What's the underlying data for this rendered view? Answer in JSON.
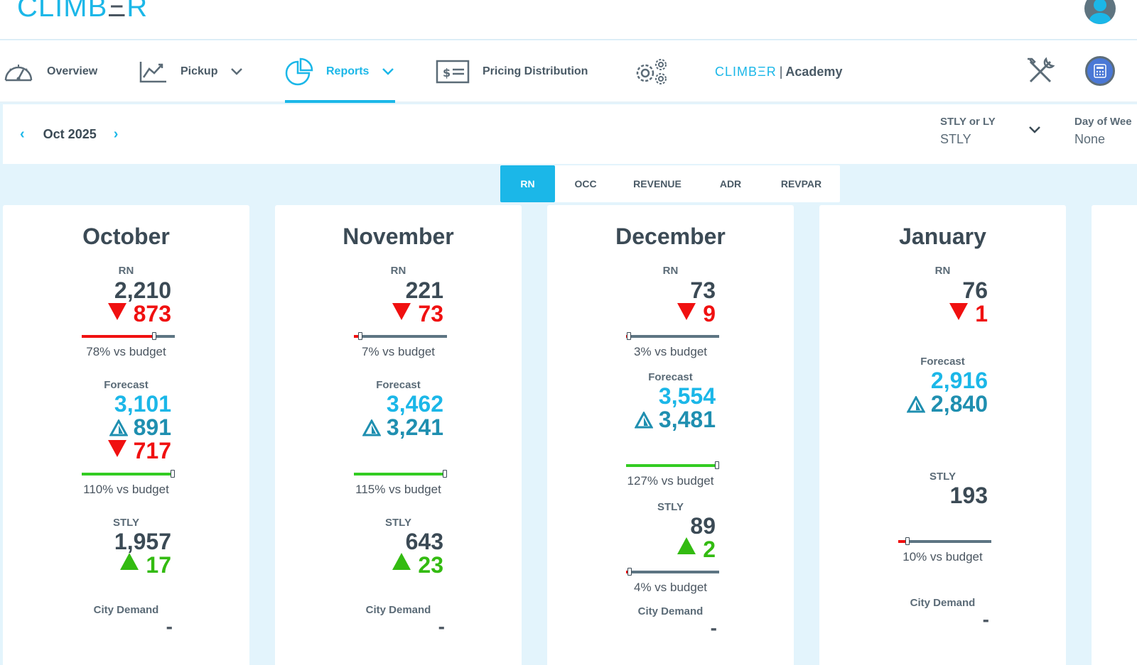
{
  "app": {
    "logo_prefix": "CLIMB",
    "logo_e": "Ξ",
    "logo_suffix": "R"
  },
  "nav": {
    "overview": "Overview",
    "pickup": "Pickup",
    "reports": "Reports",
    "pricing": "Pricing Distribution",
    "academy_brand": "CLIMBΞR",
    "academy_sep": "|",
    "academy_label": "Academy"
  },
  "filters": {
    "period": "Oct 2025",
    "comparison_label": "STLY or LY",
    "comparison_value": "STLY",
    "dow_label": "Day of Wee",
    "dow_value": "None"
  },
  "tabs": [
    "RN",
    "OCC",
    "REVENUE",
    "ADR",
    "REVPAR"
  ],
  "colors": {
    "accent": "#1bb7e8",
    "negative": "#f01010",
    "positive": "#33bb11",
    "forecast_delta": "#1f8fb0"
  },
  "cards": [
    {
      "month": "October",
      "rn_label": "RN",
      "rn": "2,210",
      "rn_delta": "873",
      "rn_delta_dir": "down",
      "rn_budget_fraction": 0.78,
      "rn_budget_text": "78% vs budget",
      "forecast_label": "Forecast",
      "forecast": "3,101",
      "forecast_pickup": "891",
      "forecast_delta": "717",
      "forecast_delta_dir": "down",
      "forecast_budget_fraction": 1.1,
      "forecast_budget_text": "110% vs budget",
      "stly_label": "STLY",
      "stly": "1,957",
      "stly_delta": "17",
      "stly_delta_dir": "up",
      "city_label": "City Demand",
      "city": "-"
    },
    {
      "month": "November",
      "rn_label": "RN",
      "rn": "221",
      "rn_delta": "73",
      "rn_delta_dir": "down",
      "rn_budget_fraction": 0.07,
      "rn_budget_text": "7% vs budget",
      "forecast_label": "Forecast",
      "forecast": "3,462",
      "forecast_pickup": "3,241",
      "forecast_budget_fraction": 1.15,
      "forecast_budget_text": "115% vs budget",
      "stly_label": "STLY",
      "stly": "643",
      "stly_delta": "23",
      "stly_delta_dir": "up",
      "city_label": "City Demand",
      "city": "-"
    },
    {
      "month": "December",
      "rn_label": "RN",
      "rn": "73",
      "rn_delta": "9",
      "rn_delta_dir": "down",
      "rn_budget_fraction": 0.03,
      "rn_budget_text": "3% vs budget",
      "forecast_label": "Forecast",
      "forecast": "3,554",
      "forecast_pickup": "3,481",
      "forecast_budget_fraction": 1.27,
      "forecast_budget_text": "127% vs budget",
      "stly_label": "STLY",
      "stly": "89",
      "stly_delta": "2",
      "stly_delta_dir": "up",
      "stly_budget_fraction": 0.04,
      "stly_budget_text": "4% vs budget",
      "city_label": "City Demand",
      "city": "-"
    },
    {
      "month": "January",
      "rn_label": "RN",
      "rn": "76",
      "rn_delta": "1",
      "rn_delta_dir": "down",
      "forecast_label": "Forecast",
      "forecast": "2,916",
      "forecast_pickup": "2,840",
      "stly_label": "STLY",
      "stly": "193",
      "stly_budget_fraction": 0.1,
      "stly_budget_text": "10% vs budget",
      "city_label": "City Demand",
      "city": "-"
    }
  ]
}
